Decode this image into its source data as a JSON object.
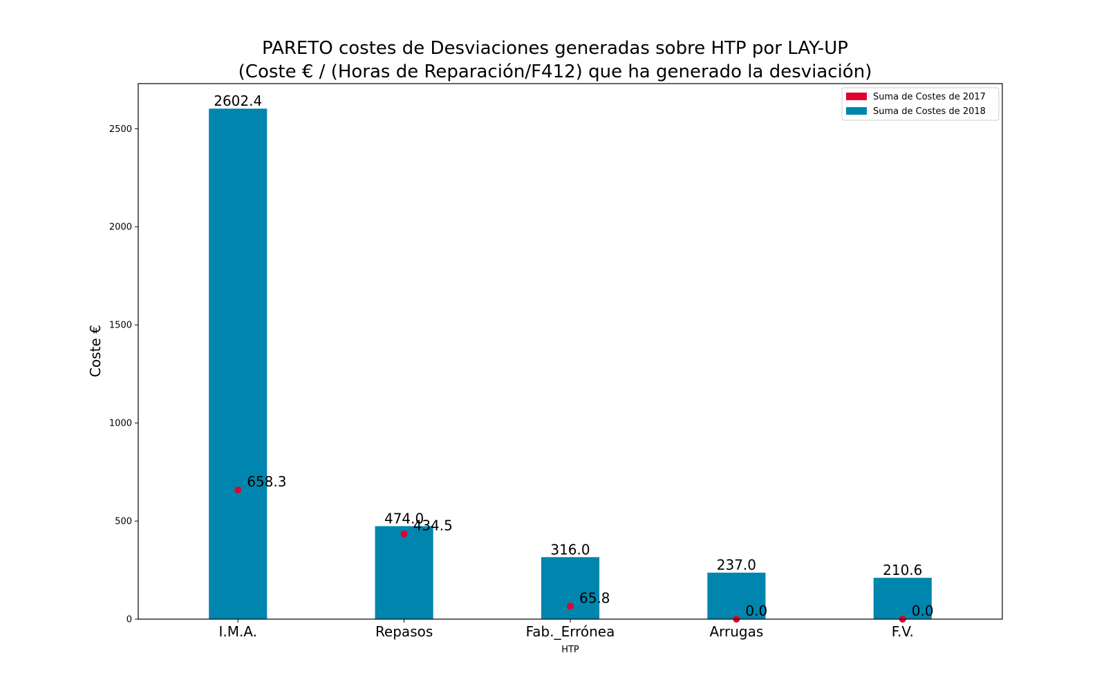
{
  "chart_data": {
    "type": "bar",
    "title_line1": "PARETO costes de Desviaciones  generadas  sobre HTP por LAY-UP",
    "title_line2": "(Coste € / (Horas de Reparación/F412) que ha generado la desviación)",
    "xlabel": "HTP",
    "ylabel": "Coste €",
    "ylim": [
      0,
      2730
    ],
    "yticks": [
      0,
      500,
      1000,
      1500,
      2000,
      2500
    ],
    "categories": [
      "I.M.A.",
      "Repasos",
      "Fab._Errónea",
      "Arrugas",
      "F.V."
    ],
    "series": [
      {
        "name": "Suma de Costes de 2017",
        "kind": "scatter",
        "color": "#e3002b",
        "values": [
          658.3,
          434.5,
          65.8,
          0.0,
          0.0
        ],
        "labels": [
          "658.3",
          "434.5",
          "65.8",
          "0.0",
          "0.0"
        ]
      },
      {
        "name": "Suma de Costes de 2018",
        "kind": "bar",
        "color": "#0086ae",
        "values": [
          2602.4,
          474.0,
          316.0,
          237.0,
          210.6
        ],
        "labels": [
          "2602.4",
          "474.0",
          "316.0",
          "237.0",
          "210.6"
        ]
      }
    ],
    "legend_position": "top-right",
    "grid": false
  }
}
